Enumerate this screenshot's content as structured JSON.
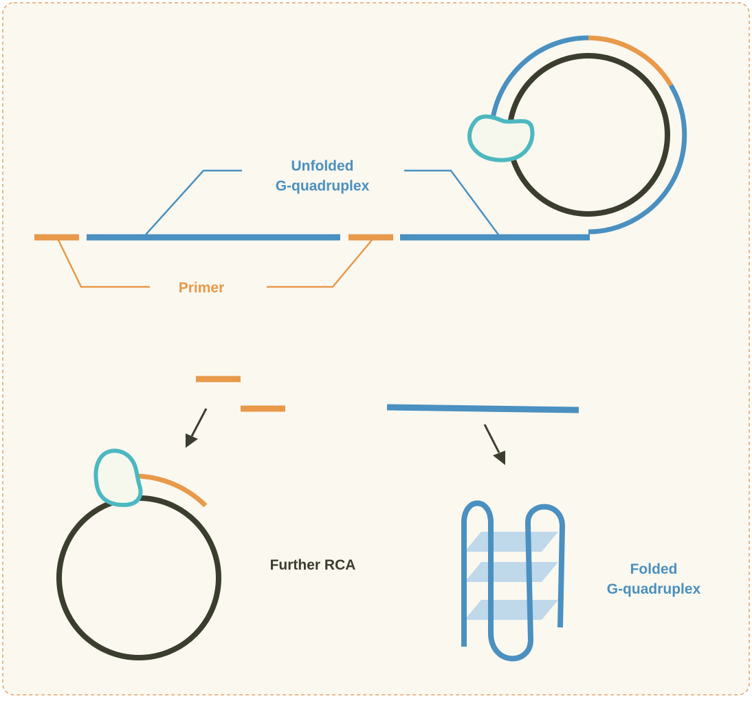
{
  "colors": {
    "background": "#fbf8f0",
    "frame": "#e8a163",
    "blue": "#4a90c0",
    "orange": "#e8994a",
    "dark": "#3b3e2e",
    "enzyme_outline": "#4cb8c0",
    "enzyme_fill": "#f6f8ee",
    "plate": "#bcd6e9"
  },
  "labels": {
    "unfolded_line1": "Unfolded",
    "unfolded_line2": "G-quadruplex",
    "primer": "Primer",
    "further_rca": "Further RCA",
    "folded_line1": "Folded",
    "folded_line2": "G-quadruplex"
  }
}
